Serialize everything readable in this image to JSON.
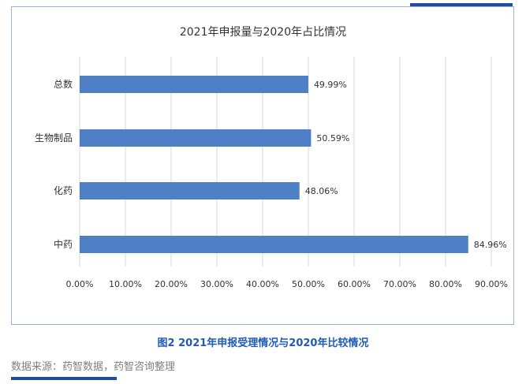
{
  "colors": {
    "bar": "#4f7fc4",
    "caption": "#1f5bb5",
    "source": "#7f7f7f",
    "grid": "#d9d9d9"
  },
  "caption": "图2 2021年申报受理情况与2020年比较情况",
  "source": "数据来源：药智数据，药智咨询整理",
  "chart_data": {
    "type": "bar",
    "orientation": "horizontal",
    "title": "2021年申报量与2020年占比情况",
    "categories": [
      "总数",
      "生物制品",
      "化药",
      "中药"
    ],
    "values": [
      49.99,
      50.59,
      48.06,
      84.96
    ],
    "data_labels": [
      "49.99%",
      "50.59%",
      "48.06%",
      "84.96%"
    ],
    "xlim": [
      0,
      90
    ],
    "xticks": [
      "0.00%",
      "10.00%",
      "20.00%",
      "30.00%",
      "40.00%",
      "50.00%",
      "60.00%",
      "70.00%",
      "80.00%",
      "90.00%"
    ],
    "grid": true
  }
}
